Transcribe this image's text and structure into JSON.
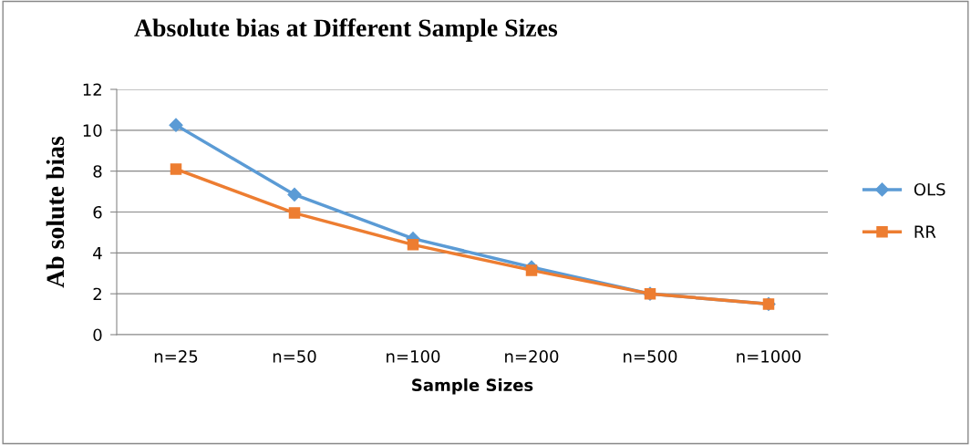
{
  "chart_data": {
    "type": "line",
    "title": "Absolute bias at Different Sample Sizes",
    "xlabel": "Sample Sizes",
    "ylabel": "Ab solute bias",
    "categories": [
      "n=25",
      "n=50",
      "n=100",
      "n=200",
      "n=500",
      "n=1000"
    ],
    "series": [
      {
        "name": "OLS",
        "color": "#5b9bd5",
        "marker": "diamond",
        "values": [
          10.25,
          6.85,
          4.7,
          3.3,
          2.0,
          1.5
        ]
      },
      {
        "name": "RR",
        "color": "#ed7d31",
        "marker": "square",
        "values": [
          8.1,
          5.95,
          4.4,
          3.15,
          2.0,
          1.5
        ]
      }
    ],
    "ylim": [
      0,
      12
    ],
    "yticks": [
      0,
      2,
      4,
      6,
      8,
      10,
      12
    ],
    "grid": "y",
    "legend": "right"
  }
}
